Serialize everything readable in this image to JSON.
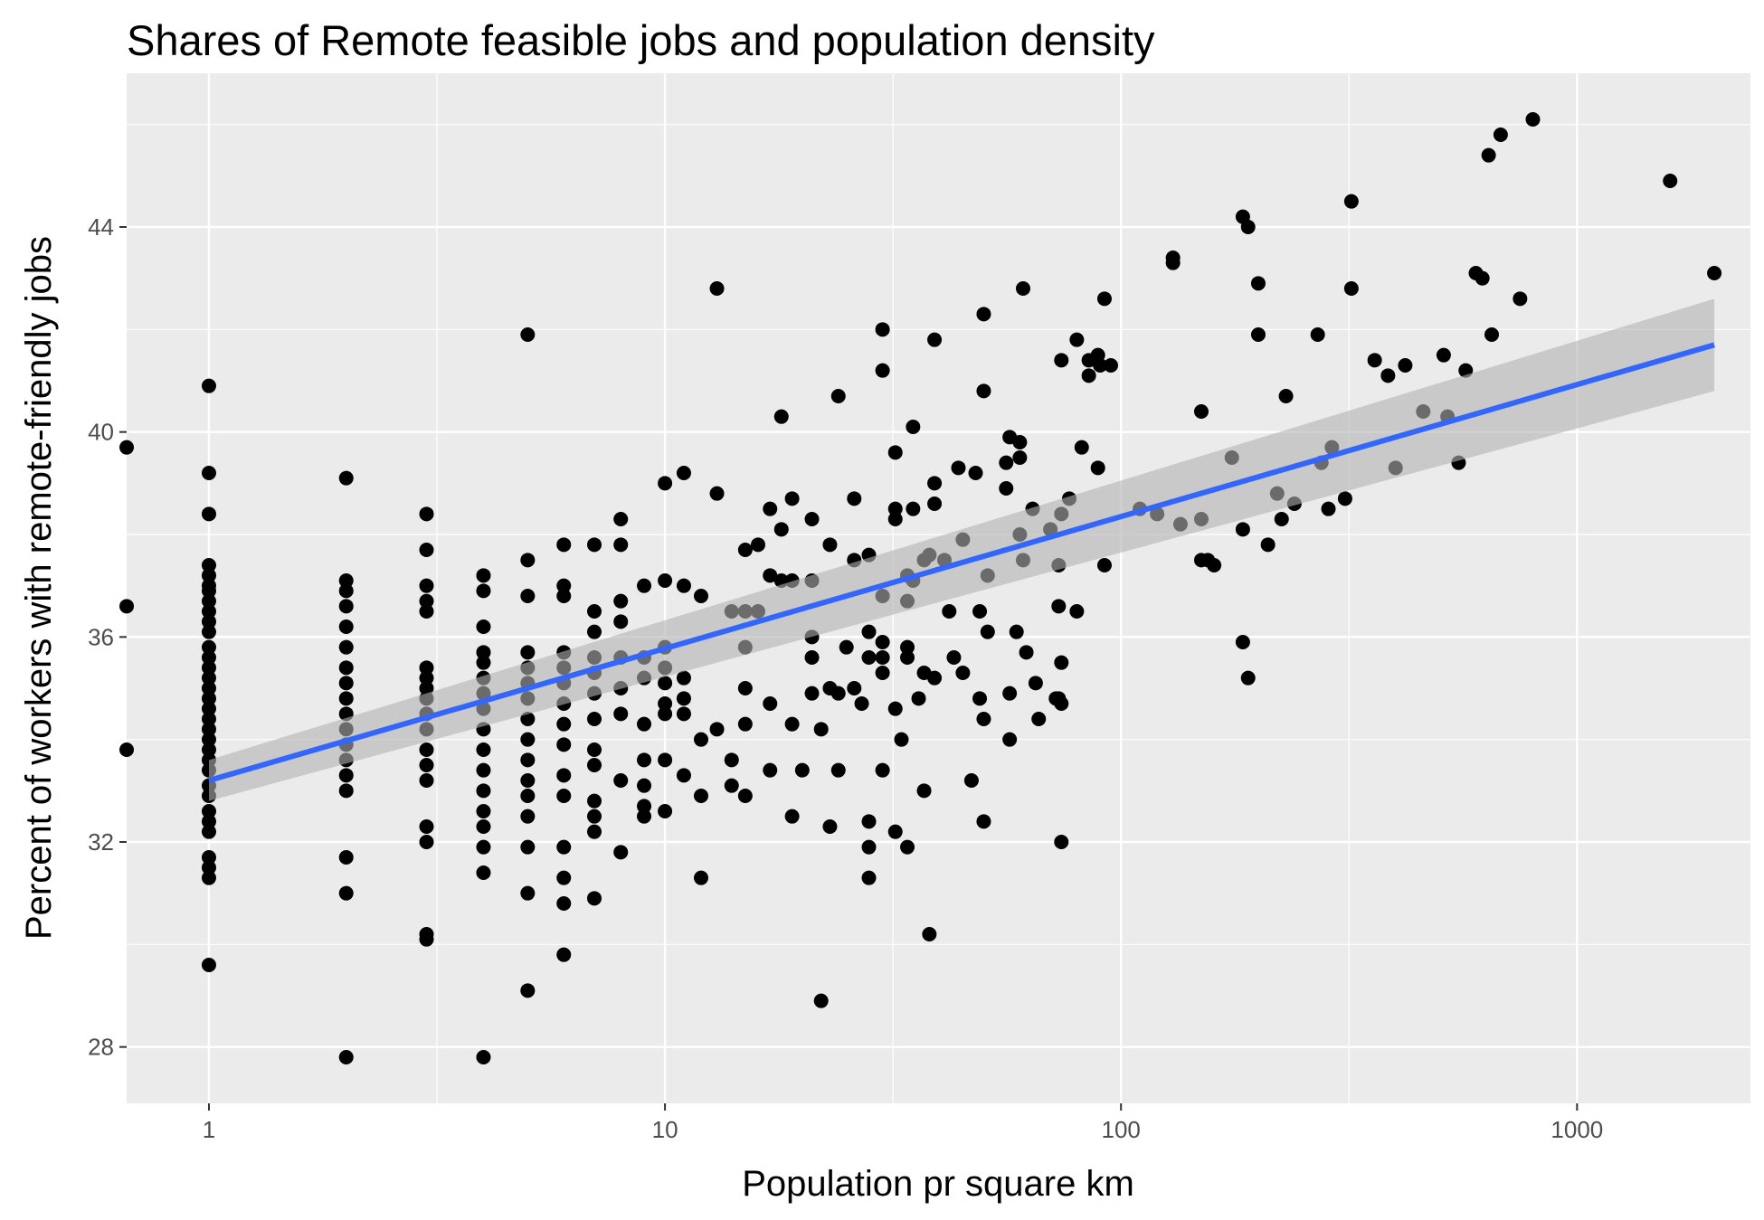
{
  "chart_data": {
    "type": "scatter",
    "title": "Shares of Remote feasible jobs and population density",
    "xlabel": "Population pr square km",
    "ylabel": "Percent of workers with remote-friendly jobs",
    "x_scale": "log10",
    "xlim": [
      0.66,
      2400
    ],
    "ylim": [
      26.9,
      47.0
    ],
    "x_ticks": [
      1,
      10,
      100,
      1000
    ],
    "x_tick_labels": [
      "1",
      "10",
      "100",
      "1000"
    ],
    "y_ticks": [
      28,
      32,
      36,
      40,
      44
    ],
    "y_tick_labels": [
      "28",
      "32",
      "36",
      "40",
      "44"
    ],
    "grid": true,
    "legend": "none",
    "colors": {
      "panel": "#ebebeb",
      "grid": "#ffffff",
      "points": "#000000",
      "fit_line": "#3366ff",
      "confidence_band": "#b3b3b3"
    },
    "fit": {
      "method": "lm",
      "x": [
        1,
        2000
      ],
      "y": [
        33.2,
        41.7
      ],
      "band_lower": [
        32.8,
        40.8
      ],
      "band_upper": [
        33.6,
        42.6
      ]
    },
    "points": [
      [
        0.66,
        39.7
      ],
      [
        0.66,
        36.6
      ],
      [
        0.66,
        33.8
      ],
      [
        1,
        40.9
      ],
      [
        1,
        39.2
      ],
      [
        1,
        38.4
      ],
      [
        1,
        37.4
      ],
      [
        1,
        37.2
      ],
      [
        1,
        37.0
      ],
      [
        1,
        36.9
      ],
      [
        1,
        36.7
      ],
      [
        1,
        36.5
      ],
      [
        1,
        36.3
      ],
      [
        1,
        36.1
      ],
      [
        1,
        35.8
      ],
      [
        1,
        35.6
      ],
      [
        1,
        35.4
      ],
      [
        1,
        35.2
      ],
      [
        1,
        35.0
      ],
      [
        1,
        34.8
      ],
      [
        1,
        34.6
      ],
      [
        1,
        34.4
      ],
      [
        1,
        34.2
      ],
      [
        1,
        34.0
      ],
      [
        1,
        33.8
      ],
      [
        1,
        33.6
      ],
      [
        1,
        33.4
      ],
      [
        1,
        33.1
      ],
      [
        1,
        32.9
      ],
      [
        1,
        32.6
      ],
      [
        1,
        32.4
      ],
      [
        1,
        32.2
      ],
      [
        1,
        31.7
      ],
      [
        1,
        31.5
      ],
      [
        1,
        31.3
      ],
      [
        1,
        29.6
      ],
      [
        2,
        39.1
      ],
      [
        2,
        37.1
      ],
      [
        2,
        36.9
      ],
      [
        2,
        36.6
      ],
      [
        2,
        36.2
      ],
      [
        2,
        35.8
      ],
      [
        2,
        35.4
      ],
      [
        2,
        35.1
      ],
      [
        2,
        34.8
      ],
      [
        2,
        34.5
      ],
      [
        2,
        34.2
      ],
      [
        2,
        33.9
      ],
      [
        2,
        33.6
      ],
      [
        2,
        33.3
      ],
      [
        2,
        33.0
      ],
      [
        2,
        31.7
      ],
      [
        2,
        31.0
      ],
      [
        2,
        27.8
      ],
      [
        3,
        38.4
      ],
      [
        3,
        37.7
      ],
      [
        3,
        37.0
      ],
      [
        3,
        36.7
      ],
      [
        3,
        36.5
      ],
      [
        3,
        35.4
      ],
      [
        3,
        35.2
      ],
      [
        3,
        35.0
      ],
      [
        3,
        34.8
      ],
      [
        3,
        34.5
      ],
      [
        3,
        34.2
      ],
      [
        3,
        33.8
      ],
      [
        3,
        33.5
      ],
      [
        3,
        33.2
      ],
      [
        3,
        32.3
      ],
      [
        3,
        32.0
      ],
      [
        3,
        30.2
      ],
      [
        3,
        30.1
      ],
      [
        4,
        37.2
      ],
      [
        4,
        36.9
      ],
      [
        4,
        36.2
      ],
      [
        4,
        35.7
      ],
      [
        4,
        35.5
      ],
      [
        4,
        35.2
      ],
      [
        4,
        34.9
      ],
      [
        4,
        34.6
      ],
      [
        4,
        34.2
      ],
      [
        4,
        33.8
      ],
      [
        4,
        33.4
      ],
      [
        4,
        33.0
      ],
      [
        4,
        32.6
      ],
      [
        4,
        32.3
      ],
      [
        4,
        31.9
      ],
      [
        4,
        31.4
      ],
      [
        4,
        27.8
      ],
      [
        5,
        41.9
      ],
      [
        5,
        37.5
      ],
      [
        5,
        36.8
      ],
      [
        5,
        35.7
      ],
      [
        5,
        35.4
      ],
      [
        5,
        35.1
      ],
      [
        5,
        34.8
      ],
      [
        5,
        34.4
      ],
      [
        5,
        34.0
      ],
      [
        5,
        33.6
      ],
      [
        5,
        33.2
      ],
      [
        5,
        32.9
      ],
      [
        5,
        32.5
      ],
      [
        5,
        31.9
      ],
      [
        5,
        31.0
      ],
      [
        5,
        29.1
      ],
      [
        6,
        37.8
      ],
      [
        6,
        37.0
      ],
      [
        6,
        36.8
      ],
      [
        6,
        35.7
      ],
      [
        6,
        35.4
      ],
      [
        6,
        35.1
      ],
      [
        6,
        34.7
      ],
      [
        6,
        34.3
      ],
      [
        6,
        33.9
      ],
      [
        6,
        33.3
      ],
      [
        6,
        32.9
      ],
      [
        6,
        31.9
      ],
      [
        6,
        31.3
      ],
      [
        6,
        30.8
      ],
      [
        6,
        29.8
      ],
      [
        7,
        37.8
      ],
      [
        7,
        36.5
      ],
      [
        7,
        36.1
      ],
      [
        7,
        35.6
      ],
      [
        7,
        35.3
      ],
      [
        7,
        34.9
      ],
      [
        7,
        34.4
      ],
      [
        7,
        33.8
      ],
      [
        7,
        33.5
      ],
      [
        7,
        32.8
      ],
      [
        7,
        32.5
      ],
      [
        7,
        32.2
      ],
      [
        7,
        30.9
      ],
      [
        8,
        38.3
      ],
      [
        8,
        37.8
      ],
      [
        8,
        36.7
      ],
      [
        8,
        36.3
      ],
      [
        8,
        35.6
      ],
      [
        8,
        35.0
      ],
      [
        8,
        34.5
      ],
      [
        8,
        33.2
      ],
      [
        8,
        31.8
      ],
      [
        9,
        37.0
      ],
      [
        9,
        35.6
      ],
      [
        9,
        35.2
      ],
      [
        9,
        34.3
      ],
      [
        9,
        33.6
      ],
      [
        9,
        33.1
      ],
      [
        9,
        32.7
      ],
      [
        9,
        32.5
      ],
      [
        10,
        39.0
      ],
      [
        10,
        37.1
      ],
      [
        10,
        35.8
      ],
      [
        10,
        35.4
      ],
      [
        10,
        35.1
      ],
      [
        10,
        34.7
      ],
      [
        10,
        34.5
      ],
      [
        10,
        33.6
      ],
      [
        10,
        32.6
      ],
      [
        11,
        39.2
      ],
      [
        11,
        37.0
      ],
      [
        11,
        35.2
      ],
      [
        11,
        34.8
      ],
      [
        11,
        34.5
      ],
      [
        11,
        33.3
      ],
      [
        12,
        36.8
      ],
      [
        12,
        34.0
      ],
      [
        12,
        32.9
      ],
      [
        12,
        31.3
      ],
      [
        13,
        42.8
      ],
      [
        13,
        38.8
      ],
      [
        13,
        34.2
      ],
      [
        14,
        36.5
      ],
      [
        14,
        33.6
      ],
      [
        14,
        33.1
      ],
      [
        15,
        37.7
      ],
      [
        15,
        36.5
      ],
      [
        15,
        35.8
      ],
      [
        15,
        35.0
      ],
      [
        15,
        34.3
      ],
      [
        15,
        32.9
      ],
      [
        16,
        37.8
      ],
      [
        16,
        36.5
      ],
      [
        17,
        38.5
      ],
      [
        17,
        37.2
      ],
      [
        17,
        34.7
      ],
      [
        17,
        33.4
      ],
      [
        18,
        40.3
      ],
      [
        18,
        38.1
      ],
      [
        18,
        37.1
      ],
      [
        19,
        38.7
      ],
      [
        19,
        37.1
      ],
      [
        19,
        34.3
      ],
      [
        19,
        32.5
      ],
      [
        20,
        33.4
      ],
      [
        21,
        38.3
      ],
      [
        21,
        37.1
      ],
      [
        21,
        36.0
      ],
      [
        21,
        35.6
      ],
      [
        21,
        34.9
      ],
      [
        22,
        34.2
      ],
      [
        22,
        28.9
      ],
      [
        23,
        37.8
      ],
      [
        23,
        35.0
      ],
      [
        23,
        32.3
      ],
      [
        24,
        40.7
      ],
      [
        24,
        34.9
      ],
      [
        24,
        33.4
      ],
      [
        25,
        35.8
      ],
      [
        26,
        38.7
      ],
      [
        26,
        37.5
      ],
      [
        26,
        35.0
      ],
      [
        27,
        34.7
      ],
      [
        28,
        37.6
      ],
      [
        28,
        36.1
      ],
      [
        28,
        35.6
      ],
      [
        28,
        32.4
      ],
      [
        28,
        31.9
      ],
      [
        28,
        31.3
      ],
      [
        30,
        42.0
      ],
      [
        30,
        41.2
      ],
      [
        30,
        36.8
      ],
      [
        30,
        35.9
      ],
      [
        30,
        35.6
      ],
      [
        30,
        35.3
      ],
      [
        30,
        33.4
      ],
      [
        32,
        39.6
      ],
      [
        32,
        38.5
      ],
      [
        32,
        38.3
      ],
      [
        32,
        34.6
      ],
      [
        32,
        32.2
      ],
      [
        33,
        34.0
      ],
      [
        34,
        37.2
      ],
      [
        34,
        36.7
      ],
      [
        34,
        35.8
      ],
      [
        34,
        35.6
      ],
      [
        34,
        31.9
      ],
      [
        35,
        40.1
      ],
      [
        35,
        38.5
      ],
      [
        35,
        37.1
      ],
      [
        36,
        34.8
      ],
      [
        37,
        37.5
      ],
      [
        37,
        35.3
      ],
      [
        37,
        33.0
      ],
      [
        38,
        37.6
      ],
      [
        38,
        30.2
      ],
      [
        39,
        41.8
      ],
      [
        39,
        39.0
      ],
      [
        39,
        38.6
      ],
      [
        39,
        35.2
      ],
      [
        41,
        37.5
      ],
      [
        42,
        36.5
      ],
      [
        43,
        35.6
      ],
      [
        44,
        39.3
      ],
      [
        45,
        37.9
      ],
      [
        45,
        35.3
      ],
      [
        47,
        33.2
      ],
      [
        48,
        39.2
      ],
      [
        49,
        36.5
      ],
      [
        49,
        34.8
      ],
      [
        50,
        42.3
      ],
      [
        50,
        40.8
      ],
      [
        50,
        34.4
      ],
      [
        50,
        32.4
      ],
      [
        51,
        37.2
      ],
      [
        51,
        36.1
      ],
      [
        56,
        39.4
      ],
      [
        56,
        38.9
      ],
      [
        57,
        39.9
      ],
      [
        57,
        34.9
      ],
      [
        57,
        34.0
      ],
      [
        59,
        36.1
      ],
      [
        60,
        39.8
      ],
      [
        60,
        39.5
      ],
      [
        60,
        38.0
      ],
      [
        61,
        42.8
      ],
      [
        61,
        37.5
      ],
      [
        62,
        35.7
      ],
      [
        64,
        38.5
      ],
      [
        65,
        35.1
      ],
      [
        66,
        34.4
      ],
      [
        70,
        38.1
      ],
      [
        72,
        34.8
      ],
      [
        73,
        37.4
      ],
      [
        73,
        36.6
      ],
      [
        73,
        34.8
      ],
      [
        74,
        41.4
      ],
      [
        74,
        38.4
      ],
      [
        74,
        35.5
      ],
      [
        74,
        34.7
      ],
      [
        74,
        32.0
      ],
      [
        77,
        38.7
      ],
      [
        80,
        41.8
      ],
      [
        80,
        36.5
      ],
      [
        82,
        39.7
      ],
      [
        85,
        41.4
      ],
      [
        85,
        41.1
      ],
      [
        89,
        41.5
      ],
      [
        89,
        39.3
      ],
      [
        90,
        41.3
      ],
      [
        92,
        42.6
      ],
      [
        92,
        37.4
      ],
      [
        95,
        41.3
      ],
      [
        110,
        38.5
      ],
      [
        120,
        38.4
      ],
      [
        130,
        43.4
      ],
      [
        130,
        43.3
      ],
      [
        135,
        38.2
      ],
      [
        150,
        40.4
      ],
      [
        150,
        38.3
      ],
      [
        150,
        37.5
      ],
      [
        155,
        37.5
      ],
      [
        160,
        37.4
      ],
      [
        175,
        39.5
      ],
      [
        185,
        44.2
      ],
      [
        185,
        38.1
      ],
      [
        185,
        35.9
      ],
      [
        190,
        44.0
      ],
      [
        190,
        35.2
      ],
      [
        200,
        42.9
      ],
      [
        200,
        41.9
      ],
      [
        210,
        37.8
      ],
      [
        220,
        38.8
      ],
      [
        225,
        38.3
      ],
      [
        230,
        40.7
      ],
      [
        240,
        38.6
      ],
      [
        270,
        41.9
      ],
      [
        275,
        39.4
      ],
      [
        285,
        38.5
      ],
      [
        290,
        39.7
      ],
      [
        310,
        38.7
      ],
      [
        320,
        44.5
      ],
      [
        320,
        42.8
      ],
      [
        360,
        41.4
      ],
      [
        385,
        41.1
      ],
      [
        400,
        39.3
      ],
      [
        420,
        41.3
      ],
      [
        460,
        40.4
      ],
      [
        510,
        41.5
      ],
      [
        520,
        40.3
      ],
      [
        550,
        39.4
      ],
      [
        570,
        41.2
      ],
      [
        600,
        43.1
      ],
      [
        620,
        43.0
      ],
      [
        640,
        45.4
      ],
      [
        650,
        41.9
      ],
      [
        680,
        45.8
      ],
      [
        750,
        42.6
      ],
      [
        800,
        46.1
      ],
      [
        1600,
        44.9
      ],
      [
        2000,
        43.1
      ]
    ]
  }
}
